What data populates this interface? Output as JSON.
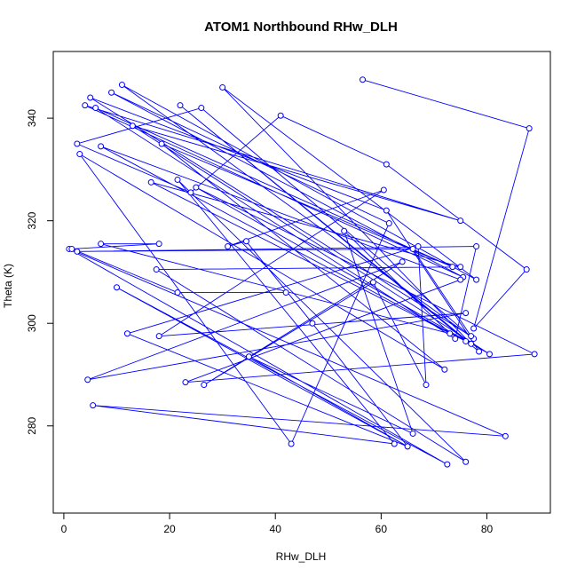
{
  "chart_data": {
    "type": "line",
    "title": "ATOM1 Northbound RHw_DLH",
    "xlabel": "RHw_DLH",
    "ylabel": "Theta (K)",
    "xlim": [
      -2,
      92
    ],
    "ylim": [
      263,
      353
    ],
    "xticks": [
      0,
      20,
      40,
      60,
      80
    ],
    "yticks": [
      280,
      300,
      320,
      340
    ],
    "grid": false,
    "legend": "none",
    "marker": "open-circle",
    "series_color": "#0000ff",
    "series": [
      {
        "x": [
          56.5,
          88.0,
          77.5,
          87.5,
          61.0,
          41.0,
          24.0,
          2.5,
          26.0,
          77.5,
          11.0,
          78.0,
          30.0,
          77.0,
          22.0,
          78.5,
          61.0,
          5.0,
          77.0,
          66.0,
          2.5,
          78.0,
          74.0,
          6.0,
          73.5,
          18.5,
          72.0,
          3.0,
          43.0,
          61.5,
          9.0,
          75.5,
          4.0,
          75.0,
          13.0,
          80.5,
          25.0,
          89.0,
          23.0,
          75.0,
          7.0,
          76.0,
          16.5,
          75.0,
          17.5,
          76.0,
          21.5,
          62.5,
          5.5,
          83.5,
          1.0,
          72.5,
          10.0,
          65.0,
          12.0,
          67.0,
          68.5,
          58.5,
          26.5,
          64.0,
          4.5,
          76.0,
          18.0,
          60.5,
          31.0,
          34.5,
          47.0,
          65.0,
          35.0,
          66.0,
          53.0,
          73.0,
          7.0,
          18.0,
          1.5,
          21.5,
          42.0
        ],
        "y": [
          347.5,
          338.0,
          299.0,
          310.5,
          331.0,
          340.5,
          325.5,
          335.0,
          342.0,
          297.0,
          346.5,
          308.5,
          346.0,
          296.0,
          342.5,
          294.5,
          322.0,
          344.0,
          297.5,
          314.5,
          314.0,
          315.0,
          297.0,
          342.0,
          311.0,
          335.0,
          291.0,
          333.0,
          276.5,
          319.5,
          345.0,
          309.0,
          342.5,
          320.0,
          338.5,
          294.0,
          326.5,
          294.0,
          288.5,
          308.5,
          334.5,
          296.5,
          327.5,
          311.0,
          310.5,
          273.0,
          328.0,
          276.5,
          284.0,
          278.0,
          314.5,
          272.5,
          307.0,
          276.0,
          298.0,
          315.0,
          288.0,
          308.0,
          288.0,
          312.0,
          289.0,
          302.0,
          297.5,
          326.0,
          315.0,
          316.0,
          300.0,
          276.0,
          293.5,
          278.5,
          318.0,
          298.0,
          315.5,
          315.5,
          314.5,
          306.0,
          306.0
        ]
      }
    ]
  }
}
